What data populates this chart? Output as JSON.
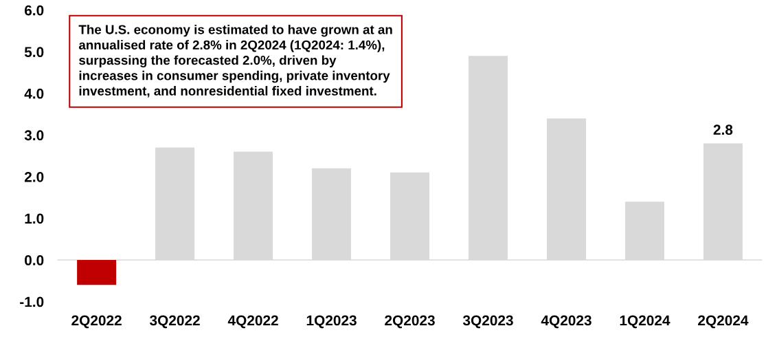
{
  "chart_data": {
    "type": "bar",
    "categories": [
      "2Q2022",
      "3Q2022",
      "4Q2022",
      "1Q2023",
      "2Q2023",
      "3Q2023",
      "4Q2023",
      "1Q2024",
      "2Q2024"
    ],
    "values": [
      -0.6,
      2.7,
      2.6,
      2.2,
      2.1,
      4.9,
      3.4,
      1.4,
      2.8
    ],
    "colors": [
      "#c00000",
      "#d9d9d9",
      "#d9d9d9",
      "#d9d9d9",
      "#d9d9d9",
      "#d9d9d9",
      "#d9d9d9",
      "#d9d9d9",
      "#d9d9d9"
    ],
    "value_labels": [
      null,
      null,
      null,
      null,
      null,
      null,
      null,
      null,
      "2.8"
    ],
    "ylim": [
      -1,
      6
    ],
    "yticks": [
      {
        "value": -1,
        "label": "-1.0"
      },
      {
        "value": 0,
        "label": "0.0"
      },
      {
        "value": 1,
        "label": "1.0"
      },
      {
        "value": 2,
        "label": "2.0"
      },
      {
        "value": 3,
        "label": "3.0"
      },
      {
        "value": 4,
        "label": "4.0"
      },
      {
        "value": 5,
        "label": "5.0"
      },
      {
        "value": 6,
        "label": "6.0"
      }
    ],
    "annotations": [
      "The U.S. economy is estimated to have grown at an\nannualised rate of 2.8% in 2Q2024 (1Q2024: 1.4%),\nsurpassing the forecasted 2.0%, driven by\nincreases in consumer spending, private inventory\ninvestment, and nonresidential fixed investment."
    ],
    "legend": false
  }
}
